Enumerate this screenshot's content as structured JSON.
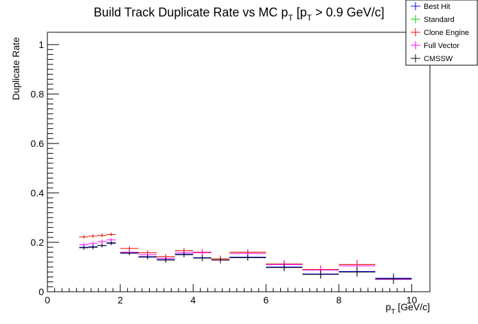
{
  "chart_data": {
    "type": "scatter",
    "title_main": "Build Track Duplicate Rate vs MC p",
    "title_sub1": "T",
    "title_mid": " [p",
    "title_sub2": "T",
    "title_end": " > 0.9 GeV/c]",
    "ylabel": "Duplicate Rate",
    "xlabel_main": "p",
    "xlabel_sub": "T",
    "xlabel_end": " [GeV/c]",
    "xlim": [
      0,
      10.5
    ],
    "ylim": [
      0,
      1.05
    ],
    "xticks": [
      "0",
      "2",
      "4",
      "6",
      "8",
      "10"
    ],
    "yticks": [
      "0",
      "0.2",
      "0.4",
      "0.6",
      "0.8",
      "1"
    ],
    "legend_position": "top-right",
    "series": [
      {
        "name": "Best Hit",
        "color": "#0000ff",
        "points": [
          {
            "x": 1.0,
            "xw": 0.25,
            "y": 0.18,
            "err": 0.008
          },
          {
            "x": 1.25,
            "xw": 0.25,
            "y": 0.182,
            "err": 0.008
          },
          {
            "x": 1.5,
            "xw": 0.25,
            "y": 0.187,
            "err": 0.008
          },
          {
            "x": 1.75,
            "xw": 0.25,
            "y": 0.198,
            "err": 0.008
          },
          {
            "x": 2.25,
            "xw": 0.5,
            "y": 0.157,
            "err": 0.008
          },
          {
            "x": 2.75,
            "xw": 0.5,
            "y": 0.142,
            "err": 0.009
          },
          {
            "x": 3.25,
            "xw": 0.5,
            "y": 0.13,
            "err": 0.01
          },
          {
            "x": 3.75,
            "xw": 0.5,
            "y": 0.152,
            "err": 0.011
          },
          {
            "x": 4.25,
            "xw": 0.5,
            "y": 0.138,
            "err": 0.012
          },
          {
            "x": 4.75,
            "xw": 0.5,
            "y": 0.128,
            "err": 0.013
          },
          {
            "x": 5.5,
            "xw": 1.0,
            "y": 0.14,
            "err": 0.012
          },
          {
            "x": 6.5,
            "xw": 1.0,
            "y": 0.1,
            "err": 0.015
          },
          {
            "x": 7.5,
            "xw": 1.0,
            "y": 0.072,
            "err": 0.017
          },
          {
            "x": 8.5,
            "xw": 1.0,
            "y": 0.082,
            "err": 0.019
          },
          {
            "x": 9.5,
            "xw": 1.0,
            "y": 0.055,
            "err": 0.019
          }
        ]
      },
      {
        "name": "Standard",
        "color": "#00cc00",
        "points": [
          {
            "x": 1.0,
            "xw": 0.25,
            "y": 0.222,
            "err": 0.007
          },
          {
            "x": 1.25,
            "xw": 0.25,
            "y": 0.225,
            "err": 0.007
          },
          {
            "x": 1.5,
            "xw": 0.25,
            "y": 0.228,
            "err": 0.007
          },
          {
            "x": 1.75,
            "xw": 0.25,
            "y": 0.232,
            "err": 0.007
          },
          {
            "x": 2.25,
            "xw": 0.5,
            "y": 0.175,
            "err": 0.008
          },
          {
            "x": 2.75,
            "xw": 0.5,
            "y": 0.158,
            "err": 0.009
          },
          {
            "x": 3.25,
            "xw": 0.5,
            "y": 0.142,
            "err": 0.01
          },
          {
            "x": 3.75,
            "xw": 0.5,
            "y": 0.166,
            "err": 0.011
          },
          {
            "x": 4.25,
            "xw": 0.5,
            "y": 0.16,
            "err": 0.012
          },
          {
            "x": 4.75,
            "xw": 0.5,
            "y": 0.133,
            "err": 0.013
          },
          {
            "x": 5.5,
            "xw": 1.0,
            "y": 0.16,
            "err": 0.012
          },
          {
            "x": 6.5,
            "xw": 1.0,
            "y": 0.112,
            "err": 0.015
          },
          {
            "x": 7.5,
            "xw": 1.0,
            "y": 0.09,
            "err": 0.017
          },
          {
            "x": 8.5,
            "xw": 1.0,
            "y": 0.11,
            "err": 0.019
          },
          {
            "x": 9.5,
            "xw": 1.0,
            "y": 0.05,
            "err": 0.019
          }
        ]
      },
      {
        "name": "Clone Engine",
        "color": "#ff0000",
        "points": [
          {
            "x": 1.0,
            "xw": 0.25,
            "y": 0.222,
            "err": 0.007
          },
          {
            "x": 1.25,
            "xw": 0.25,
            "y": 0.225,
            "err": 0.007
          },
          {
            "x": 1.5,
            "xw": 0.25,
            "y": 0.228,
            "err": 0.007
          },
          {
            "x": 1.75,
            "xw": 0.25,
            "y": 0.232,
            "err": 0.007
          },
          {
            "x": 2.25,
            "xw": 0.5,
            "y": 0.175,
            "err": 0.008
          },
          {
            "x": 2.75,
            "xw": 0.5,
            "y": 0.158,
            "err": 0.009
          },
          {
            "x": 3.25,
            "xw": 0.5,
            "y": 0.142,
            "err": 0.01
          },
          {
            "x": 3.75,
            "xw": 0.5,
            "y": 0.166,
            "err": 0.011
          },
          {
            "x": 4.25,
            "xw": 0.5,
            "y": 0.16,
            "err": 0.012
          },
          {
            "x": 4.75,
            "xw": 0.5,
            "y": 0.133,
            "err": 0.013
          },
          {
            "x": 5.5,
            "xw": 1.0,
            "y": 0.16,
            "err": 0.012
          },
          {
            "x": 6.5,
            "xw": 1.0,
            "y": 0.112,
            "err": 0.015
          },
          {
            "x": 7.5,
            "xw": 1.0,
            "y": 0.09,
            "err": 0.017
          },
          {
            "x": 8.5,
            "xw": 1.0,
            "y": 0.11,
            "err": 0.019
          },
          {
            "x": 9.5,
            "xw": 1.0,
            "y": 0.05,
            "err": 0.019
          }
        ]
      },
      {
        "name": "Full Vector",
        "color": "#ff00ff",
        "points": [
          {
            "x": 1.0,
            "xw": 0.25,
            "y": 0.19,
            "err": 0.008
          },
          {
            "x": 1.25,
            "xw": 0.25,
            "y": 0.195,
            "err": 0.008
          },
          {
            "x": 1.5,
            "xw": 0.25,
            "y": 0.203,
            "err": 0.008
          },
          {
            "x": 1.75,
            "xw": 0.25,
            "y": 0.21,
            "err": 0.008
          },
          {
            "x": 2.25,
            "xw": 0.5,
            "y": 0.16,
            "err": 0.008
          },
          {
            "x": 2.75,
            "xw": 0.5,
            "y": 0.15,
            "err": 0.009
          },
          {
            "x": 3.25,
            "xw": 0.5,
            "y": 0.135,
            "err": 0.01
          },
          {
            "x": 3.75,
            "xw": 0.5,
            "y": 0.158,
            "err": 0.011
          },
          {
            "x": 4.25,
            "xw": 0.5,
            "y": 0.158,
            "err": 0.012
          },
          {
            "x": 4.75,
            "xw": 0.5,
            "y": 0.128,
            "err": 0.013
          },
          {
            "x": 5.5,
            "xw": 1.0,
            "y": 0.155,
            "err": 0.012
          },
          {
            "x": 6.5,
            "xw": 1.0,
            "y": 0.11,
            "err": 0.015
          },
          {
            "x": 7.5,
            "xw": 1.0,
            "y": 0.088,
            "err": 0.017
          },
          {
            "x": 8.5,
            "xw": 1.0,
            "y": 0.105,
            "err": 0.019
          },
          {
            "x": 9.5,
            "xw": 1.0,
            "y": 0.05,
            "err": 0.019
          }
        ]
      },
      {
        "name": "CMSSW",
        "color": "#000000",
        "points": [
          {
            "x": 1.0,
            "xw": 0.25,
            "y": 0.178,
            "err": 0.008
          },
          {
            "x": 1.25,
            "xw": 0.25,
            "y": 0.18,
            "err": 0.008
          },
          {
            "x": 1.5,
            "xw": 0.25,
            "y": 0.187,
            "err": 0.008
          },
          {
            "x": 1.75,
            "xw": 0.25,
            "y": 0.196,
            "err": 0.008
          },
          {
            "x": 2.25,
            "xw": 0.5,
            "y": 0.156,
            "err": 0.008
          },
          {
            "x": 2.75,
            "xw": 0.5,
            "y": 0.14,
            "err": 0.009
          },
          {
            "x": 3.25,
            "xw": 0.5,
            "y": 0.128,
            "err": 0.01
          },
          {
            "x": 3.75,
            "xw": 0.5,
            "y": 0.15,
            "err": 0.011
          },
          {
            "x": 4.25,
            "xw": 0.5,
            "y": 0.136,
            "err": 0.012
          },
          {
            "x": 4.75,
            "xw": 0.5,
            "y": 0.128,
            "err": 0.013
          },
          {
            "x": 5.5,
            "xw": 1.0,
            "y": 0.138,
            "err": 0.012
          },
          {
            "x": 6.5,
            "xw": 1.0,
            "y": 0.098,
            "err": 0.015
          },
          {
            "x": 7.5,
            "xw": 1.0,
            "y": 0.07,
            "err": 0.017
          },
          {
            "x": 8.5,
            "xw": 1.0,
            "y": 0.08,
            "err": 0.019
          },
          {
            "x": 9.5,
            "xw": 1.0,
            "y": 0.052,
            "err": 0.019
          }
        ]
      }
    ]
  }
}
